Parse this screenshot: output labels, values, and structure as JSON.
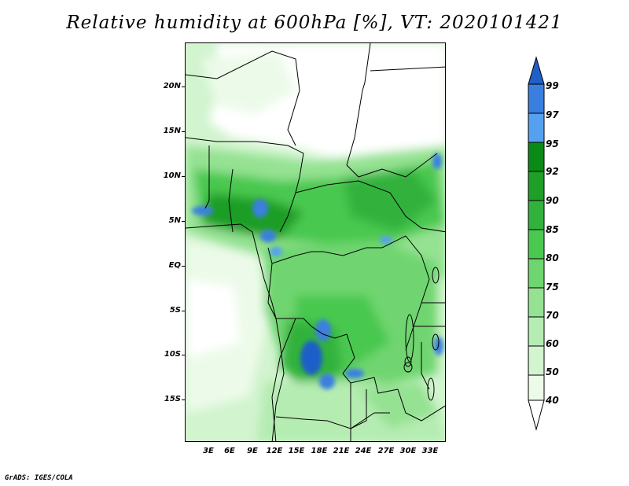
{
  "title": "Relative humidity at 600hPa [%], VT: 2020101421",
  "credit": "GrADS: IGES/COLA",
  "map": {
    "y_labels": [
      "20N",
      "15N",
      "10N",
      "5N",
      "EQ",
      "5S",
      "10S",
      "15S"
    ],
    "x_labels": [
      "3E",
      "6E",
      "9E",
      "12E",
      "15E",
      "18E",
      "21E",
      "24E",
      "27E",
      "30E",
      "33E"
    ]
  },
  "colorbar": {
    "levels": [
      "99",
      "97",
      "95",
      "92",
      "90",
      "85",
      "80",
      "75",
      "70",
      "60",
      "50",
      "40"
    ],
    "colors": [
      "#1f5fc8",
      "#3a7fe0",
      "#56a0f0",
      "#0b8a18",
      "#1f9e28",
      "#32b23c",
      "#4ac850",
      "#6fd56f",
      "#94e292",
      "#b5ecb2",
      "#d2f4cf",
      "#ecfbe9",
      "#ffffff"
    ]
  }
}
